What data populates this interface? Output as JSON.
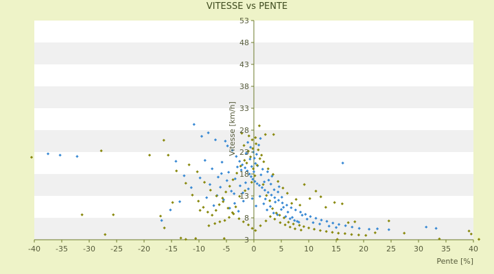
{
  "chart_data": {
    "type": "scatter",
    "title": "VITESSE vs PENTE",
    "xlabel": "Pente [%]",
    "ylabel": "Vitesse [km/h]",
    "xlim": [
      -40,
      40
    ],
    "ylim": [
      3,
      53
    ],
    "x_ticks": [
      "-40",
      "-35",
      "-30",
      "-25",
      "-20",
      "-15",
      "-10",
      "-5",
      "0",
      "5",
      "10",
      "15",
      "20",
      "25",
      "30",
      "35",
      "40"
    ],
    "y_ticks": [
      "3",
      "8",
      "13",
      "18",
      "23",
      "28",
      "33",
      "38",
      "43",
      "48",
      "53"
    ],
    "grid": "horizontal alternating bands",
    "colors": {
      "background": "#eef3c8",
      "band_light": "#ffffff",
      "band_shade": "#f0f0f0",
      "axis": "#6b7a2a",
      "series_a": "#3a8ad4",
      "series_b": "#8a8a10"
    },
    "series": [
      {
        "color": "#3a8ad4",
        "points": [
          [
            -37.5,
            22.6
          ],
          [
            -35.3,
            22.3
          ],
          [
            -32.2,
            22.0
          ],
          [
            -10.9,
            29.3
          ],
          [
            -9.5,
            26.6
          ],
          [
            -8.3,
            27.4
          ],
          [
            -7.0,
            25.8
          ],
          [
            -5.2,
            25.5
          ],
          [
            -4.8,
            24.4
          ],
          [
            -3.9,
            23.4
          ],
          [
            -3.2,
            22.0
          ],
          [
            -2.6,
            20.9
          ],
          [
            -2.1,
            20.1
          ],
          [
            -1.6,
            19.4
          ],
          [
            -1.2,
            18.7
          ],
          [
            -0.8,
            18.0
          ],
          [
            -0.5,
            17.4
          ],
          [
            -0.2,
            16.8
          ],
          [
            0.2,
            16.3
          ],
          [
            0.6,
            15.8
          ],
          [
            1.0,
            15.4
          ],
          [
            1.5,
            14.9
          ],
          [
            2.0,
            14.3
          ],
          [
            2.6,
            13.8
          ],
          [
            3.2,
            13.2
          ],
          [
            3.8,
            12.6
          ],
          [
            4.5,
            12.0
          ],
          [
            5.2,
            11.4
          ],
          [
            6.0,
            10.9
          ],
          [
            6.8,
            10.3
          ],
          [
            7.6,
            9.8
          ],
          [
            8.5,
            9.3
          ],
          [
            9.4,
            8.8
          ],
          [
            10.3,
            8.3
          ],
          [
            11.3,
            7.9
          ],
          [
            12.3,
            7.5
          ],
          [
            13.3,
            7.2
          ],
          [
            14.4,
            6.8
          ],
          [
            15.5,
            6.5
          ],
          [
            16.2,
            20.5
          ],
          [
            16.7,
            6.2
          ],
          [
            17.9,
            5.9
          ],
          [
            19.2,
            5.6
          ],
          [
            21.0,
            5.4
          ],
          [
            22.5,
            5.5
          ],
          [
            24.6,
            5.3
          ],
          [
            31.4,
            5.9
          ],
          [
            33.2,
            5.6
          ],
          [
            -12.7,
            17.6
          ],
          [
            -14.2,
            20.9
          ],
          [
            -6.1,
            15.0
          ],
          [
            -5.5,
            12.1
          ],
          [
            -4.4,
            10.2
          ],
          [
            -3.6,
            13.5
          ],
          [
            -2.8,
            9.5
          ],
          [
            -1.9,
            11.8
          ],
          [
            -1.0,
            14.6
          ],
          [
            -0.3,
            12.4
          ],
          [
            0.4,
            10.7
          ],
          [
            1.1,
            12.9
          ],
          [
            1.8,
            11.2
          ],
          [
            2.4,
            9.8
          ],
          [
            3.0,
            10.6
          ],
          [
            3.6,
            9.1
          ],
          [
            4.3,
            8.7
          ],
          [
            5.0,
            9.9
          ],
          [
            5.8,
            8.3
          ],
          [
            6.6,
            7.8
          ],
          [
            7.4,
            7.4
          ],
          [
            8.2,
            7.0
          ],
          [
            -8.9,
            21.1
          ],
          [
            -7.6,
            19.2
          ],
          [
            -6.5,
            17.3
          ],
          [
            -5.8,
            20.7
          ],
          [
            -4.6,
            18.4
          ],
          [
            -3.4,
            16.9
          ],
          [
            -2.3,
            18.9
          ],
          [
            -1.4,
            22.7
          ],
          [
            -0.6,
            24.1
          ],
          [
            0.1,
            21.6
          ],
          [
            0.7,
            19.9
          ],
          [
            1.3,
            17.8
          ],
          [
            1.9,
            16.2
          ],
          [
            2.5,
            18.5
          ],
          [
            3.1,
            15.7
          ],
          [
            3.7,
            14.4
          ],
          [
            4.4,
            13.9
          ],
          [
            5.1,
            12.7
          ],
          [
            0.3,
            20.4
          ],
          [
            -0.4,
            19.7
          ],
          [
            0.0,
            18.5
          ],
          [
            -0.1,
            23.0
          ],
          [
            0.5,
            22.5
          ],
          [
            -0.7,
            21.4
          ],
          [
            0.9,
            24.6
          ],
          [
            -1.1,
            25.2
          ],
          [
            1.2,
            26.1
          ],
          [
            -1.5,
            16.0
          ],
          [
            1.6,
            19.1
          ],
          [
            -2.0,
            13.7
          ],
          [
            2.1,
            12.3
          ],
          [
            -2.5,
            15.3
          ],
          [
            2.7,
            16.6
          ],
          [
            -3.0,
            19.6
          ],
          [
            3.3,
            17.5
          ],
          [
            -3.5,
            11.3
          ],
          [
            3.9,
            11.6
          ],
          [
            -4.1,
            14.1
          ],
          [
            4.6,
            15.1
          ],
          [
            -4.9,
            16.5
          ],
          [
            5.4,
            10.4
          ],
          [
            -5.9,
            18.1
          ],
          [
            6.2,
            9.3
          ],
          [
            -6.7,
            13.1
          ],
          [
            7.0,
            8.1
          ],
          [
            -7.3,
            10.8
          ],
          [
            7.9,
            7.2
          ],
          [
            -8.0,
            15.6
          ],
          [
            8.8,
            8.6
          ],
          [
            -8.6,
            12.6
          ],
          [
            9.7,
            7.7
          ],
          [
            -9.8,
            17.1
          ],
          [
            10.8,
            6.9
          ],
          [
            -11.4,
            14.9
          ],
          [
            12.0,
            6.6
          ],
          [
            -13.5,
            11.7
          ],
          [
            13.7,
            6.1
          ],
          [
            -15.2,
            9.8
          ],
          [
            15.0,
            5.8
          ],
          [
            -16.8,
            7.4
          ]
        ]
      },
      {
        "color": "#8a8a10",
        "points": [
          [
            -27.8,
            23.3
          ],
          [
            -25.6,
            8.7
          ],
          [
            -19.0,
            22.3
          ],
          [
            -17.0,
            8.4
          ],
          [
            -16.3,
            5.7
          ],
          [
            -14.8,
            11.5
          ],
          [
            -13.3,
            3.4
          ],
          [
            -12.4,
            3.1
          ],
          [
            -10.6,
            3.3
          ],
          [
            -9.8,
            9.7
          ],
          [
            -5.4,
            3.3
          ],
          [
            -31.3,
            8.7
          ],
          [
            -27.1,
            4.2
          ],
          [
            -40.5,
            21.8
          ],
          [
            1.0,
            29.0
          ],
          [
            2.1,
            27.0
          ],
          [
            3.6,
            27.0
          ],
          [
            -2.2,
            27.3
          ],
          [
            -0.9,
            26.7
          ],
          [
            0.3,
            26.3
          ],
          [
            -1.8,
            24.5
          ],
          [
            -0.2,
            23.8
          ],
          [
            0.8,
            23.5
          ],
          [
            -0.6,
            21.9
          ],
          [
            1.4,
            22.3
          ],
          [
            -1.3,
            20.5
          ],
          [
            0.6,
            20.0
          ],
          [
            -0.1,
            19.2
          ],
          [
            0.2,
            17.6
          ],
          [
            -0.4,
            16.1
          ],
          [
            1.7,
            15.6
          ],
          [
            -1.6,
            14.2
          ],
          [
            2.3,
            13.1
          ],
          [
            -2.6,
            12.9
          ],
          [
            2.9,
            11.9
          ],
          [
            -3.3,
            10.5
          ],
          [
            3.4,
            10.1
          ],
          [
            -3.9,
            9.2
          ],
          [
            4.1,
            9.1
          ],
          [
            -4.5,
            8.1
          ],
          [
            4.7,
            8.6
          ],
          [
            -5.3,
            7.4
          ],
          [
            5.5,
            8.0
          ],
          [
            -6.2,
            7.1
          ],
          [
            6.3,
            7.0
          ],
          [
            -7.1,
            6.7
          ],
          [
            7.2,
            6.6
          ],
          [
            -8.2,
            6.2
          ],
          [
            8.3,
            6.3
          ],
          [
            9.1,
            6.0
          ],
          [
            10.0,
            5.7
          ],
          [
            11.0,
            5.4
          ],
          [
            12.1,
            5.1
          ],
          [
            13.2,
            4.9
          ],
          [
            14.3,
            4.7
          ],
          [
            15.4,
            4.5
          ],
          [
            16.6,
            4.4
          ],
          [
            17.8,
            4.2
          ],
          [
            19.1,
            4.1
          ],
          [
            20.4,
            4.0
          ],
          [
            22.1,
            4.6
          ],
          [
            24.6,
            7.3
          ],
          [
            27.4,
            4.5
          ],
          [
            33.8,
            3.2
          ],
          [
            39.2,
            5.0
          ],
          [
            39.6,
            4.3
          ],
          [
            41.0,
            3.1
          ],
          [
            15.2,
            3.1
          ],
          [
            16.1,
            11.2
          ],
          [
            17.2,
            6.9
          ],
          [
            18.4,
            7.1
          ],
          [
            14.7,
            11.5
          ],
          [
            13.1,
            10.4
          ],
          [
            12.2,
            12.8
          ],
          [
            11.3,
            14.1
          ],
          [
            10.2,
            12.4
          ],
          [
            9.2,
            15.6
          ],
          [
            8.4,
            10.9
          ],
          [
            7.7,
            12.2
          ],
          [
            6.9,
            11.3
          ],
          [
            6.1,
            13.6
          ],
          [
            5.3,
            14.8
          ],
          [
            4.4,
            16.3
          ],
          [
            3.5,
            17.9
          ],
          [
            2.6,
            19.2
          ],
          [
            1.8,
            20.8
          ],
          [
            1.1,
            21.5
          ],
          [
            0.4,
            24.9
          ],
          [
            -0.3,
            25.8
          ],
          [
            -1.0,
            23.2
          ],
          [
            -1.7,
            21.1
          ],
          [
            -2.4,
            19.8
          ],
          [
            -3.1,
            18.2
          ],
          [
            -3.8,
            16.7
          ],
          [
            -4.4,
            15.2
          ],
          [
            -5.1,
            13.9
          ],
          [
            -5.7,
            12.5
          ],
          [
            -6.3,
            11.0
          ],
          [
            -6.9,
            9.7
          ],
          [
            -7.6,
            8.6
          ],
          [
            -8.4,
            9.3
          ],
          [
            -9.2,
            10.4
          ],
          [
            -10.1,
            11.8
          ],
          [
            -11.2,
            13.2
          ],
          [
            -12.4,
            15.9
          ],
          [
            -14.1,
            18.7
          ],
          [
            -15.6,
            22.3
          ],
          [
            -16.4,
            25.7
          ],
          [
            -11.8,
            20.1
          ],
          [
            -10.3,
            18.5
          ],
          [
            -9.0,
            16.1
          ],
          [
            -7.9,
            14.3
          ],
          [
            -6.8,
            13.0
          ],
          [
            -5.6,
            11.7
          ],
          [
            -4.7,
            10.2
          ],
          [
            -3.7,
            8.9
          ],
          [
            -2.7,
            7.8
          ],
          [
            -1.9,
            7.1
          ],
          [
            -1.0,
            6.4
          ],
          [
            -0.3,
            5.6
          ],
          [
            0.3,
            5.1
          ],
          [
            1.2,
            6.2
          ],
          [
            2.2,
            7.3
          ],
          [
            3.0,
            8.3
          ],
          [
            3.8,
            7.7
          ],
          [
            4.8,
            6.9
          ],
          [
            5.7,
            6.4
          ],
          [
            6.6,
            5.9
          ],
          [
            7.5,
            5.5
          ],
          [
            8.6,
            5.2
          ]
        ]
      }
    ]
  }
}
